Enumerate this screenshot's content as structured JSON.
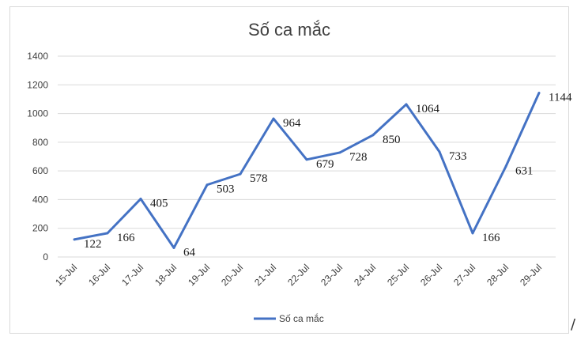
{
  "chart_data": {
    "type": "line",
    "title": "Số ca mắc",
    "categories": [
      "15-Jul",
      "16-Jul",
      "17-Jul",
      "18-Jul",
      "19-Jul",
      "20-Jul",
      "21-Jul",
      "22-Jul",
      "23-Jul",
      "24-Jul",
      "25-Jul",
      "26-Jul",
      "27-Jul",
      "28-Jul",
      "29-Jul"
    ],
    "series": [
      {
        "name": "Số ca mắc",
        "color": "#4472c4",
        "values": [
          122,
          166,
          405,
          64,
          503,
          578,
          964,
          679,
          728,
          850,
          1064,
          733,
          166,
          631,
          1144
        ]
      }
    ],
    "ylim": [
      0,
      1400
    ],
    "yticks": [
      0,
      200,
      400,
      600,
      800,
      1000,
      1200,
      1400
    ],
    "grid": true,
    "legend": "bottom",
    "data_labels": true
  },
  "corner_mark": "/"
}
